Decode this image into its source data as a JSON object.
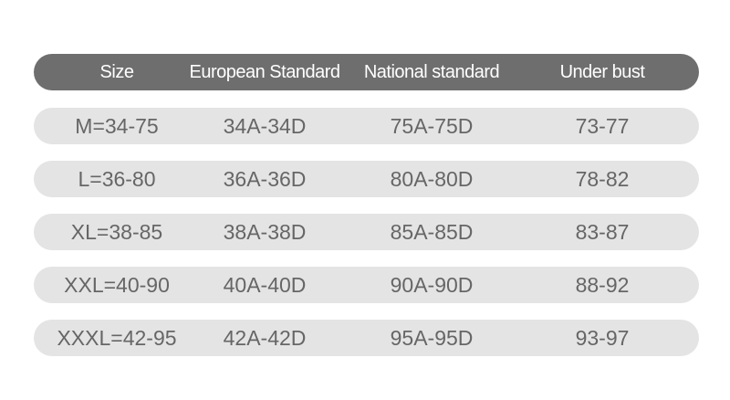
{
  "table": {
    "header": [
      "Size",
      "European Standard",
      "National standard",
      "Under bust"
    ],
    "rows": [
      [
        "M=34-75",
        "34A-34D",
        "75A-75D",
        "73-77"
      ],
      [
        "L=36-80",
        "36A-36D",
        "80A-80D",
        "78-82"
      ],
      [
        "XL=38-85",
        "38A-38D",
        "85A-85D",
        "83-87"
      ],
      [
        "XXL=40-90",
        "40A-40D",
        "90A-90D",
        "88-92"
      ],
      [
        "XXXL=42-95",
        "42A-42D",
        "95A-95D",
        "93-97"
      ]
    ]
  }
}
